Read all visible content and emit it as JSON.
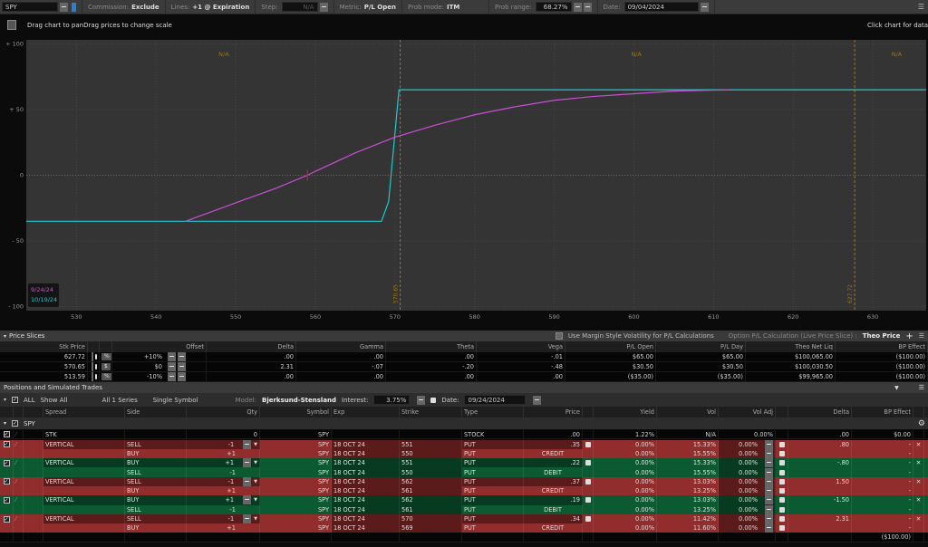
{
  "toolbar": {
    "symbol": "SPY",
    "commission_label": "Commission:",
    "commission_value": "Exclude",
    "lines_label": "Lines:",
    "lines_value": "+1 @ Expiration",
    "step_label": "Step:",
    "step_value": "N/A",
    "metric_label": "Metric:",
    "metric_value": "P/L Open",
    "prob_mode_label": "Prob mode:",
    "prob_mode_value": "ITM",
    "prob_range_label": "Prob range:",
    "prob_range_value": "68.27%",
    "date_label": "Date:",
    "date_value": "09/04/2024"
  },
  "chart": {
    "hint_left": "Drag chart to panDrag prices to change scale",
    "hint_right": "Click chart for data"
  },
  "chart_data": {
    "type": "line",
    "x_ticks": [
      530,
      540,
      550,
      560,
      570,
      580,
      590,
      600,
      610,
      620,
      630
    ],
    "y_ticks": [
      {
        "v": 100,
        "label": "+ 100"
      },
      {
        "v": 50,
        "label": "+ 50"
      },
      {
        "v": 0,
        "label": "0"
      },
      {
        "v": -50,
        "label": "- 50"
      },
      {
        "v": -100,
        "label": "- 100"
      }
    ],
    "xlim": [
      523.7,
      636.7
    ],
    "ylim": [
      -103,
      103
    ],
    "grid": true,
    "legend_placement": "bottom-left",
    "series": [
      {
        "name": "9/24/24",
        "color": "#c94fd6",
        "points": [
          [
            543.7,
            -35
          ],
          [
            550,
            -21
          ],
          [
            555,
            -10
          ],
          [
            559,
            0
          ],
          [
            560,
            3
          ],
          [
            565,
            17
          ],
          [
            570,
            29
          ],
          [
            575,
            38
          ],
          [
            580,
            46
          ],
          [
            585,
            52
          ],
          [
            590,
            57
          ],
          [
            595,
            60
          ],
          [
            600,
            62
          ],
          [
            605,
            64
          ],
          [
            612,
            65
          ]
        ]
      },
      {
        "name": "10/19/24",
        "color": "#1fc9cc",
        "points": [
          [
            523.7,
            -35
          ],
          [
            568.3,
            -35
          ],
          [
            569.2,
            -20
          ],
          [
            570.5,
            65
          ],
          [
            636.7,
            65
          ]
        ]
      }
    ],
    "markers": [
      {
        "label": "570.65",
        "x": 570.65
      },
      {
        "label": "627.72",
        "x": 627.72
      }
    ],
    "region_labels": [
      {
        "label": "N/A",
        "x": 548.5
      },
      {
        "label": "N/A",
        "x": 600.3
      },
      {
        "label": "N/A",
        "x": 633
      }
    ],
    "current_price_marker": {
      "x": 559,
      "y": 0,
      "color": "#c0262b"
    },
    "marker_color": "#a3740f"
  },
  "price_slices": {
    "title": "Price Slices",
    "margin_vol_label": "Use Margin Style Volatility for P/L Calculations",
    "calc_label": "Option P/L Calculation (Live Price Slice) :",
    "calc_value": "Theo Price",
    "columns": [
      "Stk Price",
      "",
      "Offset",
      "Delta",
      "Gamma",
      "Theta",
      "Vega",
      "P/L Open",
      "P/L Day",
      "Theo Net Liq",
      "BP Effect"
    ],
    "rows": [
      {
        "price": "627.72",
        "unit": "%",
        "offset": "+10%",
        "delta": ".00",
        "gamma": ".00",
        "theta": ".00",
        "vega": "-.01",
        "pl_open": "$65.00",
        "pl_day": "$65.00",
        "net_liq": "$100,065.00",
        "bp": "($100.00)"
      },
      {
        "price": "570.65",
        "unit": "$",
        "offset": "$0",
        "delta": "2.31",
        "gamma": "-.07",
        "theta": "-.20",
        "vega": "-.48",
        "pl_open": "$30.50",
        "pl_day": "$30.50",
        "net_liq": "$100,030.50",
        "bp": "($100.00)"
      },
      {
        "price": "513.59",
        "unit": "%",
        "offset": "-10%",
        "delta": ".00",
        "gamma": ".00",
        "theta": ".00",
        "vega": ".00",
        "pl_open": "($35.00)",
        "pl_day": "($35.00)",
        "net_liq": "$99,965.00",
        "bp": "($100.00)"
      }
    ]
  },
  "positions": {
    "title": "Positions and Simulated Trades",
    "all_label": "ALL",
    "show_all": "Show All",
    "series": "All 1 Series",
    "symbol_mode": "Single Symbol",
    "model_label": "Model:",
    "model_value": "Bjerksund-Stensland",
    "interest_label": "Interest:",
    "interest_value": "3.75%",
    "date_label": "Date:",
    "date_value": "09/24/2024",
    "columns": [
      "Spread",
      "Side",
      "Qty",
      "Symbol",
      "Exp",
      "Strike",
      "Type",
      "Price",
      "Yield",
      "Vol",
      "Vol Adj",
      "Delta",
      "BP Effect"
    ],
    "group": "SPY",
    "stock": {
      "spread": "STK",
      "qty": "0",
      "symbol": "SPY",
      "type": "STOCK",
      "price": ".00",
      "yield": "1.22%",
      "vol": "N/A",
      "vol_adj": "0.00%",
      "delta": ".00",
      "bp": "$0.00"
    },
    "trades": [
      {
        "color": "red",
        "spread": "VERTICAL",
        "delta": ".80",
        "legs": [
          {
            "side": "SELL",
            "qty": "-1",
            "symbol": "SPY",
            "exp": "18 OCT 24",
            "strike": "551",
            "type": "PUT",
            "price": ".35",
            "yield": "0.00%",
            "vol": "15.33%",
            "vol_adj": "0.00%",
            "bp": "-"
          },
          {
            "side": "BUY",
            "qty": "+1",
            "symbol": "SPY",
            "exp": "18 OCT 24",
            "strike": "550",
            "type": "PUT",
            "price": "CREDIT",
            "yield": "0.00%",
            "vol": "15.55%",
            "vol_adj": "0.00%",
            "bp": "-"
          }
        ]
      },
      {
        "color": "grn",
        "spread": "VERTICAL",
        "delta": "-.80",
        "legs": [
          {
            "side": "BUY",
            "qty": "+1",
            "symbol": "SPY",
            "exp": "18 OCT 24",
            "strike": "551",
            "type": "PUT",
            "price": ".22",
            "yield": "0.00%",
            "vol": "15.33%",
            "vol_adj": "0.00%",
            "bp": "-"
          },
          {
            "side": "SELL",
            "qty": "-1",
            "symbol": "SPY",
            "exp": "18 OCT 24",
            "strike": "550",
            "type": "PUT",
            "price": "DEBIT",
            "yield": "0.00%",
            "vol": "15.55%",
            "vol_adj": "0.00%",
            "bp": "-"
          }
        ]
      },
      {
        "color": "red",
        "spread": "VERTICAL",
        "delta": "1.50",
        "legs": [
          {
            "side": "SELL",
            "qty": "-1",
            "symbol": "SPY",
            "exp": "18 OCT 24",
            "strike": "562",
            "type": "PUT",
            "price": ".37",
            "yield": "0.00%",
            "vol": "13.03%",
            "vol_adj": "0.00%",
            "bp": "-"
          },
          {
            "side": "BUY",
            "qty": "+1",
            "symbol": "SPY",
            "exp": "18 OCT 24",
            "strike": "561",
            "type": "PUT",
            "price": "CREDIT",
            "yield": "0.00%",
            "vol": "13.25%",
            "vol_adj": "0.00%",
            "bp": "-"
          }
        ]
      },
      {
        "color": "grn",
        "spread": "VERTICAL",
        "delta": "-1.50",
        "legs": [
          {
            "side": "BUY",
            "qty": "+1",
            "symbol": "SPY",
            "exp": "18 OCT 24",
            "strike": "562",
            "type": "PUT",
            "price": ".19",
            "yield": "0.00%",
            "vol": "13.03%",
            "vol_adj": "0.00%",
            "bp": "-"
          },
          {
            "side": "SELL",
            "qty": "-1",
            "symbol": "SPY",
            "exp": "18 OCT 24",
            "strike": "561",
            "type": "PUT",
            "price": "DEBIT",
            "yield": "0.00%",
            "vol": "13.25%",
            "vol_adj": "0.00%",
            "bp": "-"
          }
        ]
      },
      {
        "color": "red",
        "spread": "VERTICAL",
        "delta": "2.31",
        "legs": [
          {
            "side": "SELL",
            "qty": "-1",
            "symbol": "SPY",
            "exp": "18 OCT 24",
            "strike": "570",
            "type": "PUT",
            "price": ".34",
            "yield": "0.00%",
            "vol": "11.42%",
            "vol_adj": "0.00%",
            "bp": "-"
          },
          {
            "side": "BUY",
            "qty": "+1",
            "symbol": "SPY",
            "exp": "18 OCT 24",
            "strike": "569",
            "type": "PUT",
            "price": "CREDIT",
            "yield": "0.00%",
            "vol": "11.60%",
            "vol_adj": "0.00%",
            "bp": "-"
          }
        ]
      }
    ],
    "total_bp": "($100.00)"
  }
}
